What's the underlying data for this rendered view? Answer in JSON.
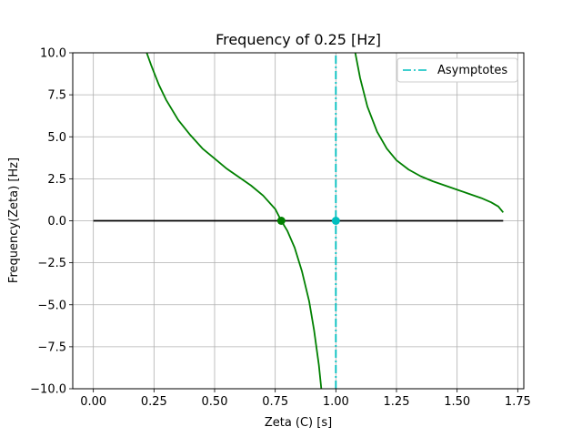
{
  "chart_data": {
    "type": "line",
    "title": "Frequency of 0.25 [Hz]",
    "xlabel": "Zeta (C) [s]",
    "ylabel": "Frequency(Zeta) [Hz]",
    "xlim": [
      -0.085,
      1.775
    ],
    "ylim": [
      -10,
      10
    ],
    "grid": true,
    "x_ticks": [
      0.0,
      0.25,
      0.5,
      0.75,
      1.0,
      1.25,
      1.5,
      1.75
    ],
    "x_tick_labels": [
      "0.00",
      "0.25",
      "0.50",
      "0.75",
      "1.00",
      "1.25",
      "1.50",
      "1.75"
    ],
    "y_ticks": [
      10,
      7.5,
      5,
      2.5,
      0,
      -2.5,
      -5,
      -7.5,
      -10
    ],
    "y_tick_labels": [
      "10.0",
      "7.5",
      "5.0",
      "2.5",
      "0.0",
      "−2.5",
      "−5.0",
      "−7.5",
      "−10.0"
    ],
    "legend": {
      "placement": "upper-right",
      "entries": [
        {
          "label": "Asymptotes",
          "color": "#00bfbf",
          "style": "dashdot"
        }
      ]
    },
    "series": [
      {
        "role": "curve",
        "color": "#008000",
        "segments": [
          [
            [
              0.22,
              10.0
            ],
            [
              0.24,
              9.2
            ],
            [
              0.27,
              8.1
            ],
            [
              0.3,
              7.2
            ],
            [
              0.35,
              6.0
            ],
            [
              0.4,
              5.1
            ],
            [
              0.45,
              4.3
            ],
            [
              0.5,
              3.7
            ],
            [
              0.55,
              3.1
            ],
            [
              0.6,
              2.6
            ],
            [
              0.65,
              2.1
            ],
            [
              0.7,
              1.5
            ],
            [
              0.75,
              0.7
            ],
            [
              0.775,
              0.0
            ],
            [
              0.8,
              -0.6
            ],
            [
              0.83,
              -1.6
            ],
            [
              0.86,
              -3.0
            ],
            [
              0.89,
              -4.8
            ],
            [
              0.91,
              -6.5
            ],
            [
              0.93,
              -8.6
            ],
            [
              0.94,
              -10.0
            ]
          ],
          [
            [
              1.08,
              10.0
            ],
            [
              1.1,
              8.5
            ],
            [
              1.13,
              6.8
            ],
            [
              1.17,
              5.3
            ],
            [
              1.21,
              4.3
            ],
            [
              1.25,
              3.6
            ],
            [
              1.3,
              3.05
            ],
            [
              1.35,
              2.65
            ],
            [
              1.4,
              2.35
            ],
            [
              1.45,
              2.1
            ],
            [
              1.5,
              1.85
            ],
            [
              1.55,
              1.6
            ],
            [
              1.6,
              1.35
            ],
            [
              1.64,
              1.1
            ],
            [
              1.67,
              0.85
            ],
            [
              1.69,
              0.5
            ]
          ]
        ]
      },
      {
        "role": "zero-line",
        "color": "#000000",
        "segments": [
          [
            [
              0.0,
              0.0
            ],
            [
              1.69,
              0.0
            ]
          ]
        ]
      },
      {
        "role": "asymptote",
        "name": "Asymptotes",
        "color": "#00bfbf",
        "style": "dashdot",
        "segments": [
          [
            [
              1.0,
              -10.0
            ],
            [
              1.0,
              10.0
            ]
          ]
        ]
      }
    ],
    "points": [
      {
        "x": 0.775,
        "y": 0.0,
        "color": "#008000"
      },
      {
        "x": 1.0,
        "y": 0.0,
        "color": "#00bfbf"
      }
    ]
  }
}
